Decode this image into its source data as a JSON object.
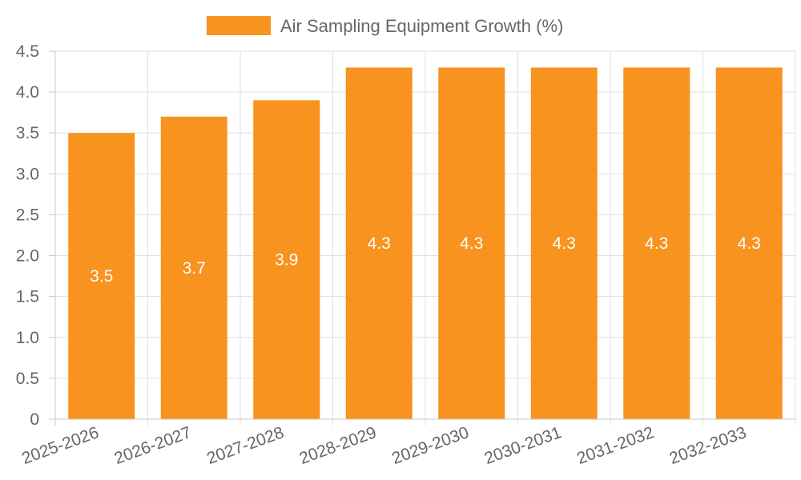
{
  "chart_data": {
    "type": "bar",
    "categories": [
      "2025-2026",
      "2026-2027",
      "2027-2028",
      "2028-2029",
      "2029-2030",
      "2030-2031",
      "2031-2032",
      "2032-2033"
    ],
    "series": [
      {
        "name": "Air Sampling Equipment Growth (%)",
        "values": [
          3.5,
          3.7,
          3.9,
          4.3,
          4.3,
          4.3,
          4.3,
          4.3
        ]
      }
    ],
    "ylim": [
      0,
      4.5
    ],
    "yticks": [
      "0",
      "0.5",
      "1.0",
      "1.5",
      "2.0",
      "2.5",
      "3.0",
      "3.5",
      "4.0",
      "4.5"
    ],
    "ytick_values": [
      0,
      0.5,
      1.0,
      1.5,
      2.0,
      2.5,
      3.0,
      3.5,
      4.0,
      4.5
    ],
    "data_labels": [
      "3.5",
      "3.7",
      "3.9",
      "4.3",
      "4.3",
      "4.3",
      "4.3",
      "4.3"
    ],
    "legend_position": "top",
    "grid": true,
    "bar_color": "#f7931e",
    "grid_color": "#e0e0e0",
    "axis_color": "#c8c8c8",
    "text_color": "#666666"
  }
}
